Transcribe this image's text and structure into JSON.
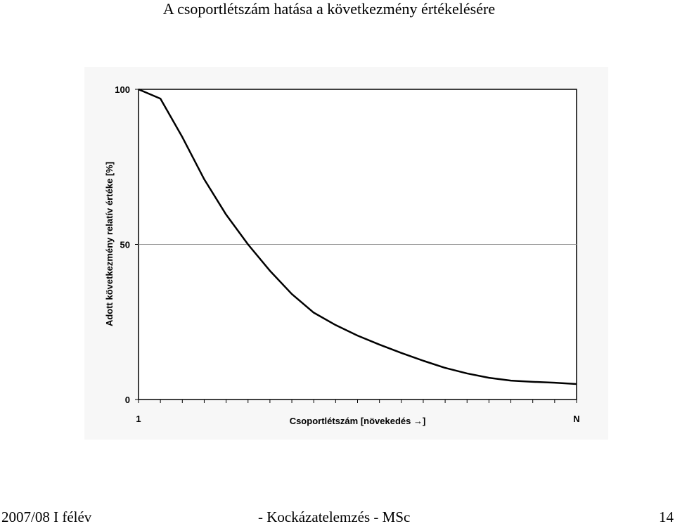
{
  "chart_data": {
    "type": "line",
    "title": "A csoportlétszám hatása a következmény értékelésére",
    "ylabel": "Adott következmény relatív értéke [%]",
    "xlabel": "Csoportlétszám [növekedés →]",
    "categories": [
      "1",
      null,
      null,
      null,
      null,
      null,
      null,
      null,
      null,
      null,
      null,
      null,
      null,
      null,
      null,
      null,
      null,
      null,
      null,
      null,
      "N"
    ],
    "values": [
      100,
      97,
      84.6,
      71,
      59.6,
      50,
      41.5,
      34,
      28,
      24,
      20.6,
      17.7,
      15,
      12.5,
      10.2,
      8.4,
      7,
      6.1,
      5.7,
      5.4,
      5
    ],
    "color": "#000000",
    "ylim": [
      0,
      100
    ],
    "yticks": [
      0,
      50,
      100
    ],
    "grid": true
  },
  "footer": {
    "left": "2007/08 I félév",
    "center": "- Kockázatelemzés - MSc",
    "right": "14"
  }
}
